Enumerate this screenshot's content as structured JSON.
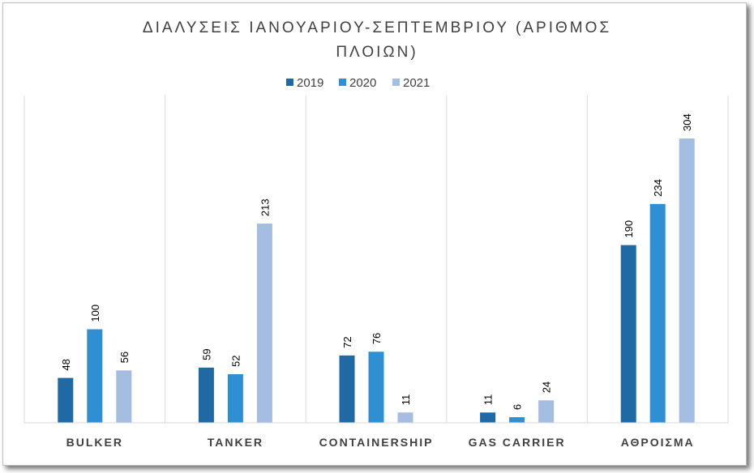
{
  "chart_data": {
    "type": "bar",
    "title_lines": [
      "ΔΙΑΛΥΣΕΙΣ ΙΑΝΟΥΑΡΙΟΥ-ΣΕΠΤΕΜΒΡΙΟΥ (ΑΡΙΘΜΟΣ",
      "ΠΛΟΙΩΝ)"
    ],
    "categories": [
      "BULKER",
      "TANKER",
      "CONTAINERSHIP",
      "GAS CARRIER",
      "ΑΘΡΟΙΣΜΑ"
    ],
    "series": [
      {
        "name": "2019",
        "color": "#1f6aa5",
        "values": [
          48,
          59,
          72,
          11,
          190
        ]
      },
      {
        "name": "2020",
        "color": "#2e8fd3",
        "values": [
          100,
          52,
          76,
          6,
          234
        ]
      },
      {
        "name": "2021",
        "color": "#a4bde0",
        "values": [
          56,
          213,
          11,
          24,
          304
        ]
      }
    ],
    "ylim": [
      0,
      350
    ],
    "grid": "vertical-category-separators",
    "legend_position": "top"
  }
}
